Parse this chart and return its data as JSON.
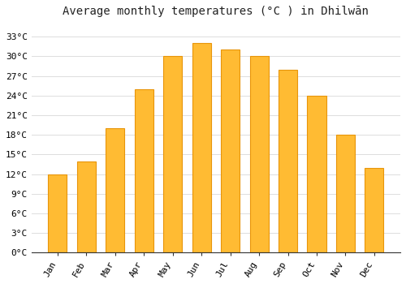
{
  "title": "Average monthly temperatures (°C ) in Dhilwān",
  "months": [
    "Jan",
    "Feb",
    "Mar",
    "Apr",
    "May",
    "Jun",
    "Jul",
    "Aug",
    "Sep",
    "Oct",
    "Nov",
    "Dec"
  ],
  "values": [
    12,
    14,
    19,
    25,
    30,
    32,
    31,
    30,
    28,
    24,
    18,
    13
  ],
  "bar_color": "#FFBB33",
  "bar_edge_color": "#E8950A",
  "background_color": "#FFFFFF",
  "plot_bg_color": "#FFFFFF",
  "ylim": [
    0,
    35
  ],
  "yticks": [
    0,
    3,
    6,
    9,
    12,
    15,
    18,
    21,
    24,
    27,
    30,
    33
  ],
  "ytick_labels": [
    "0°C",
    "3°C",
    "6°C",
    "9°C",
    "12°C",
    "15°C",
    "18°C",
    "21°C",
    "24°C",
    "27°C",
    "30°C",
    "33°C"
  ],
  "title_fontsize": 10,
  "tick_fontsize": 8,
  "grid_color": "#DDDDDD",
  "font_family": "monospace"
}
